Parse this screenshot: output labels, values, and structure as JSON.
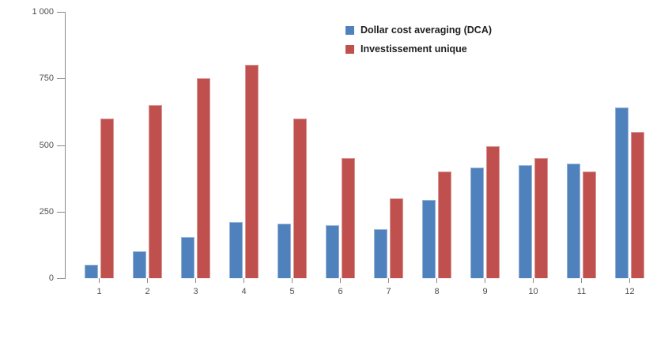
{
  "chart_data": {
    "type": "bar",
    "title": "",
    "xlabel": "",
    "ylabel": "",
    "categories": [
      "1",
      "2",
      "3",
      "4",
      "5",
      "6",
      "7",
      "8",
      "9",
      "10",
      "11",
      "12"
    ],
    "series": [
      {
        "name": "Dollar cost averaging (DCA)",
        "color": "#4F81BD",
        "border_color": "#95B3D7",
        "values": [
          50,
          100,
          155,
          210,
          205,
          200,
          185,
          295,
          415,
          425,
          430,
          640
        ]
      },
      {
        "name": "Investissement unique",
        "color": "#C0504D",
        "border_color": "#D99694",
        "values": [
          600,
          650,
          750,
          800,
          600,
          450,
          300,
          400,
          495,
          450,
          400,
          550
        ]
      }
    ],
    "ylim": [
      0,
      1000
    ],
    "yticks": [
      0,
      250,
      500,
      750,
      1000
    ],
    "ytick_labels": [
      "0",
      "250",
      "500",
      "750",
      "1 000"
    ],
    "grid": false,
    "legend_position": "top-center"
  },
  "colors": {
    "background": "#ffffff",
    "axis": "#8a8a8a",
    "tick_label": "#4d4d4d",
    "legend_text": "#1f1f1f"
  }
}
